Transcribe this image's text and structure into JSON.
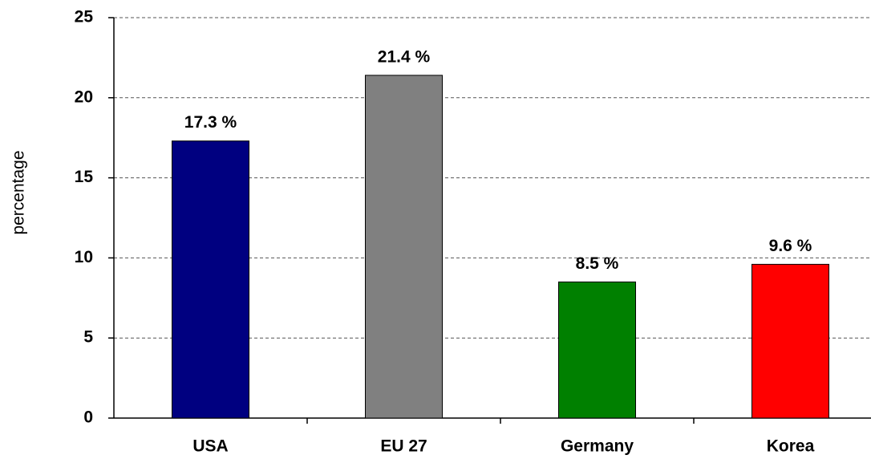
{
  "chart_data": {
    "type": "bar",
    "categories": [
      "USA",
      "EU 27",
      "Germany",
      "Korea"
    ],
    "values": [
      17.3,
      21.4,
      8.5,
      9.6
    ],
    "value_labels": [
      "17.3 %",
      "21.4 %",
      "8.5 %",
      "9.6 %"
    ],
    "colors": [
      "#000080",
      "#808080",
      "#008000",
      "#ff0000"
    ],
    "ylabel": "percentage",
    "ylim": [
      0,
      25
    ],
    "yticks": [
      0,
      5,
      10,
      15,
      20,
      25
    ],
    "grid": true
  }
}
